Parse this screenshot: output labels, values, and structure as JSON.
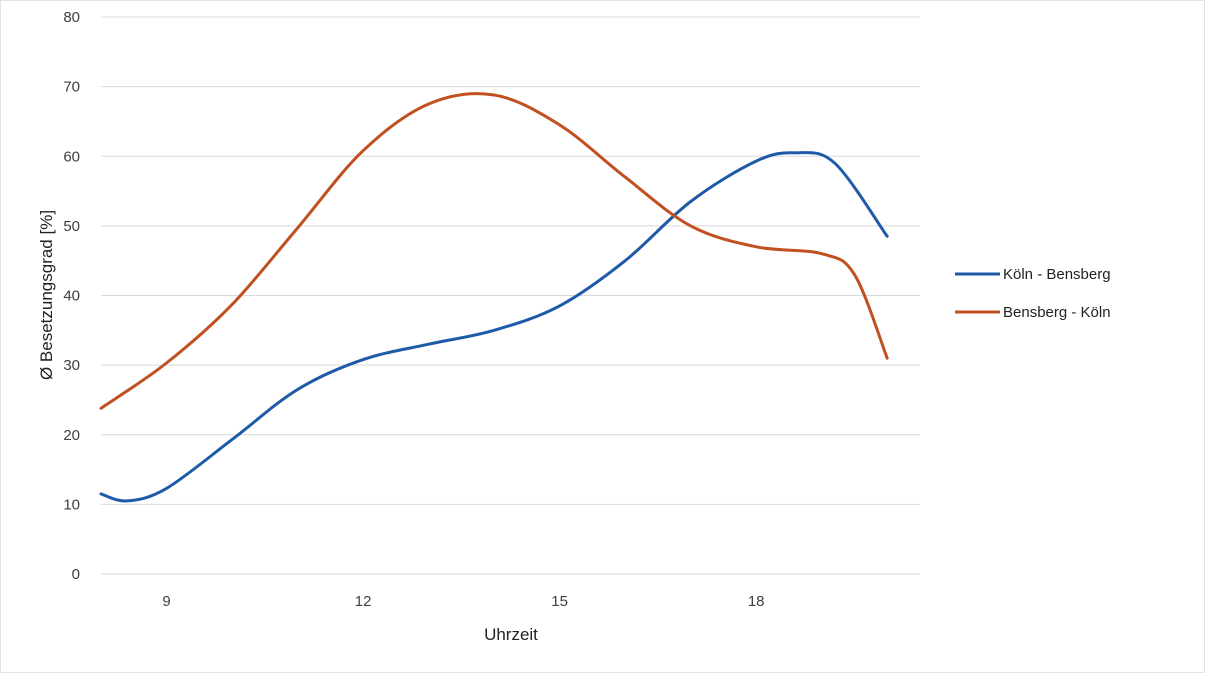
{
  "chart_data": {
    "type": "line",
    "xlabel": "Uhrzeit",
    "ylabel": "Ø Besetzungsgrad [%]",
    "ylim": [
      0,
      80
    ],
    "yticks": [
      0,
      10,
      20,
      30,
      40,
      50,
      60,
      70,
      80
    ],
    "xlim": [
      8,
      20.5
    ],
    "xticks": [
      9,
      12,
      15,
      18
    ],
    "grid": "horizontal",
    "legend_position": "right",
    "series": [
      {
        "name": "Köln - Bensberg",
        "color": "#1f5aa8",
        "x": [
          8,
          8.4,
          9,
          10,
          11,
          12,
          13,
          14,
          15,
          16,
          17,
          18,
          18.6,
          19.2,
          20
        ],
        "y": [
          11.5,
          10.5,
          12.3,
          19.3,
          26.5,
          30.8,
          33.0,
          35.0,
          38.5,
          45.0,
          53.5,
          59.3,
          60.5,
          59.0,
          48.5
        ]
      },
      {
        "name": "Bensberg - Köln",
        "color": "#c0501f",
        "x": [
          8,
          9,
          10,
          11,
          12,
          13,
          14,
          15,
          16,
          17,
          18,
          19,
          19.5,
          20
        ],
        "y": [
          23.8,
          30.3,
          38.7,
          49.7,
          60.8,
          67.5,
          68.8,
          64.5,
          57.0,
          50.0,
          47.0,
          46.0,
          43.0,
          31.0
        ]
      }
    ]
  }
}
